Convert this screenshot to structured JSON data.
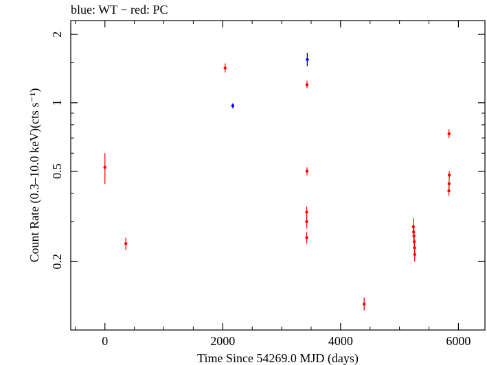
{
  "chart_data": {
    "type": "scatter",
    "annotation": "blue: WT − red: PC",
    "xlabel": "Time Since 54269.0 MJD (days)",
    "ylabel": "Count Rate (0.3–10.0 keV)(cts s⁻¹)",
    "xlim": [
      -580,
      6450
    ],
    "ylim": [
      0.1,
      2.3
    ],
    "yscale": "log",
    "xticks": [
      0,
      2000,
      4000,
      6000
    ],
    "xtick_labels": [
      "0",
      "2000",
      "4000",
      "6000"
    ],
    "yticks": [
      0.2,
      0.5,
      1,
      2
    ],
    "ytick_labels": [
      "0.2",
      "0.5",
      "1",
      "2"
    ],
    "grid": false,
    "series": [
      {
        "colour": "#ff0000",
        "points": [
          {
            "x": 0,
            "y": 0.52,
            "ylo": 0.44,
            "yhi": 0.6
          },
          {
            "x": 355,
            "y": 0.24,
            "ylo": 0.225,
            "yhi": 0.255
          },
          {
            "x": 2040,
            "y": 1.42,
            "ylo": 1.36,
            "yhi": 1.49
          },
          {
            "x": 3430,
            "y": 1.2,
            "ylo": 1.16,
            "yhi": 1.25
          },
          {
            "x": 3430,
            "y": 0.5,
            "ylo": 0.48,
            "yhi": 0.52
          },
          {
            "x": 3425,
            "y": 0.33,
            "ylo": 0.31,
            "yhi": 0.35
          },
          {
            "x": 3425,
            "y": 0.3,
            "ylo": 0.28,
            "yhi": 0.32
          },
          {
            "x": 3425,
            "y": 0.255,
            "ylo": 0.24,
            "yhi": 0.27
          },
          {
            "x": 4400,
            "y": 0.13,
            "ylo": 0.122,
            "yhi": 0.139
          },
          {
            "x": 5235,
            "y": 0.285,
            "ylo": 0.265,
            "yhi": 0.31
          },
          {
            "x": 5240,
            "y": 0.27,
            "ylo": 0.25,
            "yhi": 0.29
          },
          {
            "x": 5245,
            "y": 0.26,
            "ylo": 0.24,
            "yhi": 0.28
          },
          {
            "x": 5250,
            "y": 0.245,
            "ylo": 0.23,
            "yhi": 0.26
          },
          {
            "x": 5255,
            "y": 0.23,
            "ylo": 0.215,
            "yhi": 0.245
          },
          {
            "x": 5258,
            "y": 0.215,
            "ylo": 0.2,
            "yhi": 0.23
          },
          {
            "x": 5840,
            "y": 0.73,
            "ylo": 0.7,
            "yhi": 0.765
          },
          {
            "x": 5845,
            "y": 0.48,
            "ylo": 0.46,
            "yhi": 0.5
          },
          {
            "x": 5842,
            "y": 0.44,
            "ylo": 0.42,
            "yhi": 0.46
          },
          {
            "x": 5838,
            "y": 0.41,
            "ylo": 0.39,
            "yhi": 0.43
          }
        ]
      },
      {
        "colour": "#0000ff",
        "points": [
          {
            "x": 2170,
            "y": 0.97,
            "ylo": 0.945,
            "yhi": 0.995
          },
          {
            "x": 3435,
            "y": 1.55,
            "ylo": 1.45,
            "yhi": 1.66
          }
        ]
      }
    ]
  }
}
